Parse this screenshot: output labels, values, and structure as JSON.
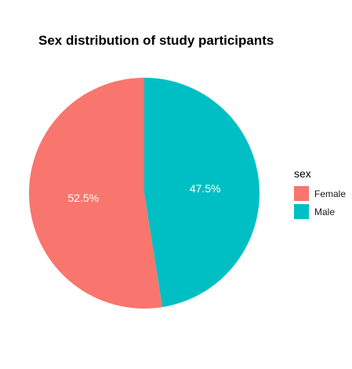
{
  "chart_data": {
    "type": "pie",
    "title": "Sex distribution of study participants",
    "legend": {
      "title": "sex",
      "position": "right"
    },
    "slices": [
      {
        "label": "Female",
        "value": 52.5,
        "text": "52.5%",
        "color": "#F8766D"
      },
      {
        "label": "Male",
        "value": 47.5,
        "text": "47.5%",
        "color": "#00BFC4"
      }
    ]
  }
}
